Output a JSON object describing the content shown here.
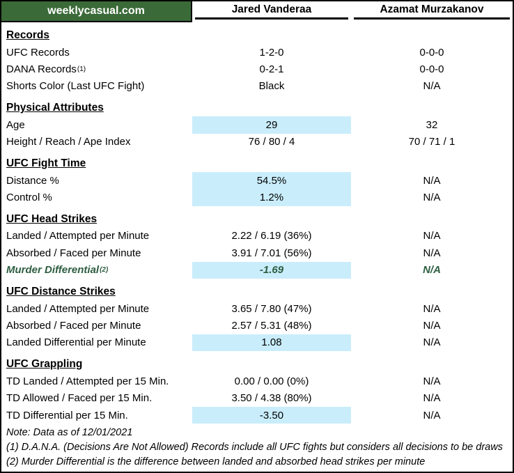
{
  "brand": {
    "site": "weeklycasual.com"
  },
  "fighters": [
    "Jared Vanderaa",
    "Azamat Murzakanov"
  ],
  "colors": {
    "header_green": "#3A6A38",
    "highlight_blue": "#C9EDFB",
    "murder_green": "#2E5E41",
    "border_black": "#000000"
  },
  "sections": [
    {
      "title": "Records",
      "rows": [
        {
          "label": "UFC Records",
          "sup": "",
          "v1": "1-2-0",
          "v2": "0-0-0",
          "hl1": false,
          "style": ""
        },
        {
          "label": "DANA Records",
          "sup": "(1)",
          "v1": "0-2-1",
          "v2": "0-0-0",
          "hl1": false,
          "style": ""
        },
        {
          "label": "Shorts Color (Last UFC Fight)",
          "sup": "",
          "v1": "Black",
          "v2": "N/A",
          "hl1": false,
          "style": ""
        }
      ]
    },
    {
      "title": "Physical Attributes",
      "rows": [
        {
          "label": "Age",
          "sup": "",
          "v1": "29",
          "v2": "32",
          "hl1": true,
          "style": ""
        },
        {
          "label": "Height / Reach / Ape Index",
          "sup": "",
          "v1": "76 / 80 / 4",
          "v2": "70 / 71 / 1",
          "hl1": false,
          "style": ""
        }
      ]
    },
    {
      "title": "UFC Fight Time",
      "rows": [
        {
          "label": "Distance %",
          "sup": "",
          "v1": "54.5%",
          "v2": "N/A",
          "hl1": true,
          "style": ""
        },
        {
          "label": "Control %",
          "sup": "",
          "v1": "1.2%",
          "v2": "N/A",
          "hl1": true,
          "style": ""
        }
      ]
    },
    {
      "title": "UFC Head Strikes",
      "rows": [
        {
          "label": "Landed / Attempted per Minute",
          "sup": "",
          "v1": "2.22 / 6.19 (36%)",
          "v2": "N/A",
          "hl1": false,
          "style": ""
        },
        {
          "label": "Absorbed / Faced per Minute",
          "sup": "",
          "v1": "3.91 / 7.01 (56%)",
          "v2": "N/A",
          "hl1": false,
          "style": ""
        },
        {
          "label": "Murder Differential",
          "sup": "(2)",
          "v1": "-1.69",
          "v2": "N/A",
          "hl1": true,
          "style": "murder"
        }
      ]
    },
    {
      "title": "UFC Distance Strikes",
      "rows": [
        {
          "label": "Landed / Attempted per Minute",
          "sup": "",
          "v1": "3.65 / 7.80 (47%)",
          "v2": "N/A",
          "hl1": false,
          "style": ""
        },
        {
          "label": "Absorbed / Faced per Minute",
          "sup": "",
          "v1": "2.57 / 5.31 (48%)",
          "v2": "N/A",
          "hl1": false,
          "style": ""
        },
        {
          "label": "Landed Differential per Minute",
          "sup": "",
          "v1": "1.08",
          "v2": "N/A",
          "hl1": true,
          "style": ""
        }
      ]
    },
    {
      "title": "UFC Grappling",
      "rows": [
        {
          "label": "TD Landed / Attempted per 15 Min.",
          "sup": "",
          "v1": "0.00 / 0.00 (0%)",
          "v2": "N/A",
          "hl1": false,
          "style": ""
        },
        {
          "label": "TD Allowed / Faced per 15 Min.",
          "sup": "",
          "v1": "3.50 / 4.38 (80%)",
          "v2": "N/A",
          "hl1": false,
          "style": ""
        },
        {
          "label": "TD Differential per 15 Min.",
          "sup": "",
          "v1": "-3.50",
          "v2": "N/A",
          "hl1": true,
          "style": ""
        }
      ]
    }
  ],
  "footnotes": [
    "Note: Data as of 12/01/2021",
    "(1) D.A.N.A. (Decisions Are Not Allowed) Records include all UFC fights but considers all decisions to be draws",
    "(2) Murder Differential is the difference between landed and absorbed head strikes per minute"
  ]
}
